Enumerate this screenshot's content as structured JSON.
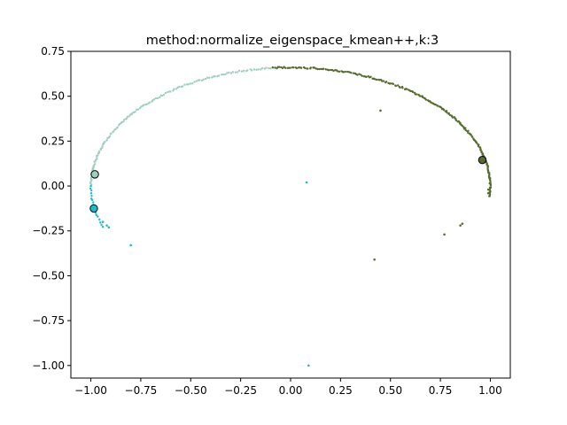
{
  "chart_data": {
    "type": "scatter",
    "title": "method:normalize_eigenspace_kmean++,k:3",
    "xlabel": "",
    "ylabel": "",
    "xlim": [
      -1.1,
      1.1
    ],
    "ylim": [
      -1.07,
      0.75
    ],
    "grid": false,
    "x_ticks": [
      -1.0,
      -0.75,
      -0.5,
      -0.25,
      0.0,
      0.25,
      0.5,
      0.75,
      1.0
    ],
    "x_tick_labels": [
      "−1.00",
      "−0.75",
      "−0.50",
      "−0.25",
      "0.00",
      "0.25",
      "0.50",
      "0.75",
      "1.00"
    ],
    "y_ticks": [
      0.75,
      0.5,
      0.25,
      0.0,
      -0.25,
      -0.5,
      -0.75,
      -1.0
    ],
    "y_tick_labels": [
      "0.75",
      "0.50",
      "0.25",
      "0.00",
      "−0.25",
      "−0.50",
      "−0.75",
      "−1.00"
    ],
    "series": [
      {
        "color": "#9fcfc0",
        "description_color": "light-teal",
        "arc": {
          "center": [
            0.0,
            0.0
          ],
          "rx": 1.0,
          "ry": 0.66,
          "t_start_deg": 95,
          "t_end_deg": 180,
          "count": 140
        },
        "extra_points": []
      },
      {
        "color": "#17becf",
        "arc": {
          "center": [
            0.0,
            0.0
          ],
          "rx": 1.0,
          "ry": 0.66,
          "t_start_deg": 180,
          "t_end_deg": 200,
          "count": 18
        },
        "extra_points": [
          [
            -0.94,
            -0.2
          ],
          [
            -0.92,
            -0.22
          ],
          [
            -0.91,
            -0.23
          ],
          [
            -0.8,
            -0.33
          ],
          [
            0.08,
            0.02
          ],
          [
            0.09,
            -1.0
          ]
        ]
      },
      {
        "color": "#556b2f",
        "arc": {
          "center": [
            0.0,
            0.0
          ],
          "rx": 1.0,
          "ry": 0.66,
          "t_start_deg": -5,
          "t_end_deg": 95,
          "count": 220
        },
        "extra_points": [
          [
            0.45,
            0.42
          ],
          [
            0.42,
            -0.41
          ],
          [
            0.77,
            -0.27
          ],
          [
            0.85,
            -0.22
          ],
          [
            0.86,
            -0.21
          ],
          [
            0.99,
            -0.02
          ],
          [
            0.99,
            -0.04
          ]
        ]
      }
    ],
    "centroids": [
      {
        "x": -0.98,
        "y": 0.065,
        "color": "#9fcfc0"
      },
      {
        "x": -0.985,
        "y": -0.125,
        "color": "#17becf"
      },
      {
        "x": 0.96,
        "y": 0.145,
        "color": "#556b2f"
      }
    ]
  }
}
